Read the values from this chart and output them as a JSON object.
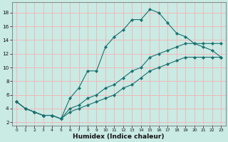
{
  "xlabel": "Humidex (Indice chaleur)",
  "bg_color": "#caeae4",
  "line_color": "#1a7070",
  "grid_color": "#f0b8b8",
  "xlim": [
    -0.5,
    23.5
  ],
  "ylim": [
    1.5,
    19.5
  ],
  "xticks": [
    0,
    1,
    2,
    3,
    4,
    5,
    6,
    7,
    8,
    9,
    10,
    11,
    12,
    13,
    14,
    15,
    16,
    17,
    18,
    19,
    20,
    21,
    22,
    23
  ],
  "yticks": [
    2,
    4,
    6,
    8,
    10,
    12,
    14,
    16,
    18
  ],
  "line1_x": [
    0,
    1,
    2,
    3,
    4,
    5,
    6,
    7,
    8,
    9,
    10,
    11,
    12,
    13,
    14,
    15,
    16,
    17,
    18,
    19,
    20,
    21,
    22,
    23
  ],
  "line1_y": [
    5.0,
    4.0,
    3.5,
    3.0,
    3.0,
    2.5,
    5.5,
    7.0,
    9.5,
    9.5,
    13.0,
    14.5,
    15.5,
    17.0,
    17.0,
    18.5,
    18.0,
    16.5,
    15.0,
    14.5,
    13.5,
    13.0,
    12.5,
    11.5
  ],
  "line2_x": [
    0,
    1,
    2,
    3,
    4,
    5,
    6,
    7,
    8,
    9,
    10,
    11,
    12,
    13,
    14,
    15,
    16,
    17,
    18,
    19,
    20,
    21,
    22,
    23
  ],
  "line2_y": [
    5.0,
    4.0,
    3.5,
    3.0,
    3.0,
    2.5,
    4.0,
    4.5,
    5.5,
    6.0,
    7.0,
    7.5,
    8.5,
    9.5,
    10.0,
    11.5,
    12.0,
    12.5,
    13.0,
    13.5,
    13.5,
    13.5,
    13.5,
    13.5
  ],
  "line3_x": [
    0,
    1,
    2,
    3,
    4,
    5,
    6,
    7,
    8,
    9,
    10,
    11,
    12,
    13,
    14,
    15,
    16,
    17,
    18,
    19,
    20,
    21,
    22,
    23
  ],
  "line3_y": [
    5.0,
    4.0,
    3.5,
    3.0,
    3.0,
    2.5,
    3.5,
    4.0,
    4.5,
    5.0,
    5.5,
    6.0,
    7.0,
    7.5,
    8.5,
    9.5,
    10.0,
    10.5,
    11.0,
    11.5,
    11.5,
    11.5,
    11.5,
    11.5
  ]
}
